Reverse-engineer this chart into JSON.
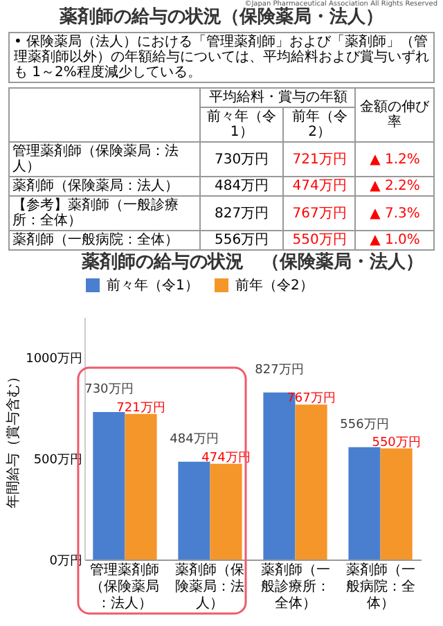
{
  "chart_data": {
    "type": "bar",
    "title": "薬剤師の給与の状況　（保険薬局・法人）",
    "ylabel": "年間給与（賞与含む）",
    "categories": [
      "管理薬剤師（保険薬局：法人）",
      "薬剤師（保険薬局：法人）",
      "薬剤師（一般診療所：全体）",
      "薬剤師（一般病院：全体）"
    ],
    "series": [
      {
        "name": "前々年（令1）",
        "color": "#4a7fd0",
        "values": [
          730,
          484,
          827,
          556
        ],
        "value_labels": [
          "730万円",
          "484万円",
          "827万円",
          "556万円"
        ]
      },
      {
        "name": "前年（令2）",
        "color": "#f5962a",
        "values": [
          721,
          474,
          767,
          550
        ],
        "value_labels": [
          "721万円",
          "474万円",
          "767万円",
          "550万円"
        ]
      }
    ],
    "ylim": [
      0,
      1200
    ],
    "yticks": [
      {
        "value": 0,
        "label": "0万円"
      },
      {
        "value": 500,
        "label": "500万円"
      },
      {
        "value": 1000,
        "label": "1000万円"
      }
    ],
    "legend": "top",
    "annotations": [
      "薬剤師の給与の状況（保険薬局・法人）",
      "• 保険薬局（法人）における「管理薬剤師」および「薬剤師」（管理薬剤師以外）の年額給与については、平均給料および賞与いずれも 1～2%程度減少している。",
      "平均給料・賞与の年額",
      "金額の伸び率",
      "管理薬剤師（保険薬局：法人）",
      "▲ 1.2%",
      "薬剤師（保険薬局：法人）",
      "▲ 2.2%",
      "【参考】薬剤師（一般診療所：全体）",
      "▲ 7.3%",
      "薬剤師（一般病院：全体）",
      "▲ 1.0%",
      "©Japan Pharmaceutical Association All Rights Reserved"
    ]
  }
}
